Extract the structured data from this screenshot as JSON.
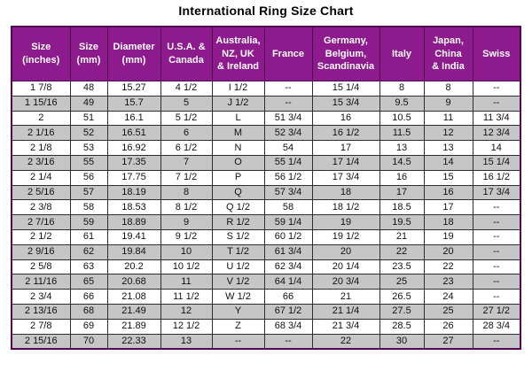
{
  "title": "International Ring Size Chart",
  "chart_data": {
    "type": "table",
    "title": "International Ring Size Chart",
    "columns": [
      "Size\n(inches)",
      "Size\n(mm)",
      "Diameter\n(mm)",
      "U.S.A. &\nCanada",
      "Australia,\nNZ, UK\n& Ireland",
      "France",
      "Germany,\nBelgium,\nScandinavia",
      "Italy",
      "Japan,\nChina\n& India",
      "Swiss"
    ],
    "rows": [
      [
        "1 7/8",
        "48",
        "15.27",
        "4 1/2",
        "I 1/2",
        "--",
        "15 1/4",
        "8",
        "8",
        "--"
      ],
      [
        "1 15/16",
        "49",
        "15.7",
        "5",
        "J 1/2",
        "--",
        "15 3/4",
        "9.5",
        "9",
        "--"
      ],
      [
        "2",
        "51",
        "16.1",
        "5 1/2",
        "L",
        "51 3/4",
        "16",
        "10.5",
        "11",
        "11 3/4"
      ],
      [
        "2 1/16",
        "52",
        "16.51",
        "6",
        "M",
        "52 3/4",
        "16 1/2",
        "11.5",
        "12",
        "12 3/4"
      ],
      [
        "2 1/8",
        "53",
        "16.92",
        "6 1/2",
        "N",
        "54",
        "17",
        "13",
        "13",
        "14"
      ],
      [
        "2 3/16",
        "55",
        "17.35",
        "7",
        "O",
        "55 1/4",
        "17 1/4",
        "14.5",
        "14",
        "15 1/4"
      ],
      [
        "2 1/4",
        "56",
        "17.75",
        "7 1/2",
        "P",
        "56 1/2",
        "17 3/4",
        "16",
        "15",
        "16 1/2"
      ],
      [
        "2 5/16",
        "57",
        "18.19",
        "8",
        "Q",
        "57 3/4",
        "18",
        "17",
        "16",
        "17 3/4"
      ],
      [
        "2 3/8",
        "58",
        "18.53",
        "8 1/2",
        "Q 1/2",
        "58",
        "18 1/2",
        "18.5",
        "17",
        "--"
      ],
      [
        "2 7/16",
        "59",
        "18.89",
        "9",
        "R 1/2",
        "59 1/4",
        "19",
        "19.5",
        "18",
        "--"
      ],
      [
        "2 1/2",
        "61",
        "19.41",
        "9 1/2",
        "S 1/2",
        "60 1/2",
        "19 1/2",
        "21",
        "19",
        "--"
      ],
      [
        "2 9/16",
        "62",
        "19.84",
        "10",
        "T 1/2",
        "61 3/4",
        "20",
        "22",
        "20",
        "--"
      ],
      [
        "2 5/8",
        "63",
        "20.2",
        "10 1/2",
        "U 1/2",
        "62 3/4",
        "20 1/4",
        "23.5",
        "22",
        "--"
      ],
      [
        "2 11/16",
        "65",
        "20.68",
        "11",
        "V 1/2",
        "64 1/4",
        "20 3/4",
        "25",
        "23",
        "--"
      ],
      [
        "2 3/4",
        "66",
        "21.08",
        "11 1/2",
        "W 1/2",
        "66",
        "21",
        "26.5",
        "24",
        "--"
      ],
      [
        "2 13/16",
        "68",
        "21.49",
        "12",
        "Y",
        "67 1/2",
        "21 1/4",
        "27.5",
        "25",
        "27 1/2"
      ],
      [
        "2 7/8",
        "69",
        "21.89",
        "12 1/2",
        "Z",
        "68 3/4",
        "21 3/4",
        "28.5",
        "26",
        "28 3/4"
      ],
      [
        "2 15/16",
        "70",
        "22.33",
        "13",
        "--",
        "--",
        "22",
        "30",
        "27",
        "--"
      ]
    ],
    "empty_marker": "--",
    "colors": {
      "header_bg": "#8d1b8d",
      "header_text": "#ffffff",
      "row_bg": "#ffffff",
      "row_alt_bg": "#c6c6c6",
      "border": "#2e2e2e",
      "outer_border": "#540854",
      "title_color": "#000000",
      "text": "#111111"
    }
  }
}
